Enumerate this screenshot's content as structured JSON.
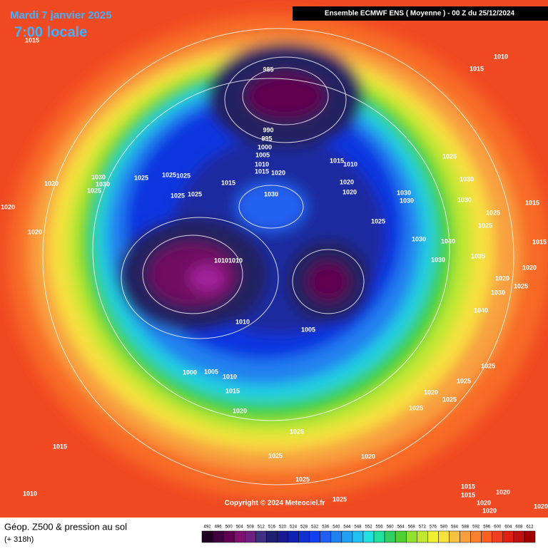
{
  "header": {
    "date": "Mardi 7 janvier 2025",
    "time": "7:00 locale",
    "model": "Ensemble ECMWF ENS  ( Moyenne )  -  00 Z du 25/12/2024"
  },
  "copyright": "Copyright © 2024 Meteociel.fr",
  "footer": {
    "title": "Géop. Z500 & pression au sol",
    "lead": "(+ 318h)"
  },
  "colorbar": {
    "labels": [
      492,
      496,
      500,
      504,
      508,
      512,
      516,
      520,
      524,
      528,
      532,
      536,
      540,
      544,
      548,
      552,
      556,
      560,
      564,
      568,
      572,
      576,
      580,
      584,
      588,
      592,
      596,
      600,
      604,
      608,
      612
    ],
    "colors": [
      "#200020",
      "#400040",
      "#600050",
      "#801070",
      "#702080",
      "#403080",
      "#202070",
      "#1a1a90",
      "#1020b0",
      "#1030d0",
      "#1040f0",
      "#2060f0",
      "#2080f0",
      "#20a0f0",
      "#20c0f0",
      "#20e0e0",
      "#20e0a0",
      "#30d060",
      "#50d030",
      "#90e030",
      "#c0e830",
      "#f0f030",
      "#f8e040",
      "#f8c040",
      "#f8a040",
      "#f88030",
      "#f86020",
      "#f04020",
      "#e02010",
      "#c01010",
      "#a00000"
    ]
  },
  "pressure_labels": [
    "1015",
    "1010",
    "1015",
    "985",
    "990",
    "995",
    "1000",
    "1005",
    "1010",
    "1015",
    "1020",
    "1015",
    "1010",
    "1025",
    "1030",
    "1025",
    "1025",
    "1025",
    "1030",
    "1025",
    "1020",
    "1015",
    "1020",
    "1020",
    "1030",
    "1025",
    "1025",
    "1020",
    "1030",
    "1030",
    "1030",
    "1030",
    "1015",
    "1025",
    "1020",
    "1025",
    "1025",
    "1030",
    "1040",
    "1010",
    "1010",
    "1030",
    "1035",
    "1015",
    "1020",
    "1020",
    "1025",
    "1010",
    "1005",
    "1030",
    "1040",
    "1000",
    "1005",
    "1010",
    "1015",
    "1020",
    "1020",
    "1025",
    "1025",
    "1025",
    "1025",
    "1025",
    "1015",
    "1025",
    "1020",
    "1025",
    "1025",
    "1010",
    "1015",
    "1015",
    "1020",
    "1020",
    "1020",
    "1020"
  ]
}
